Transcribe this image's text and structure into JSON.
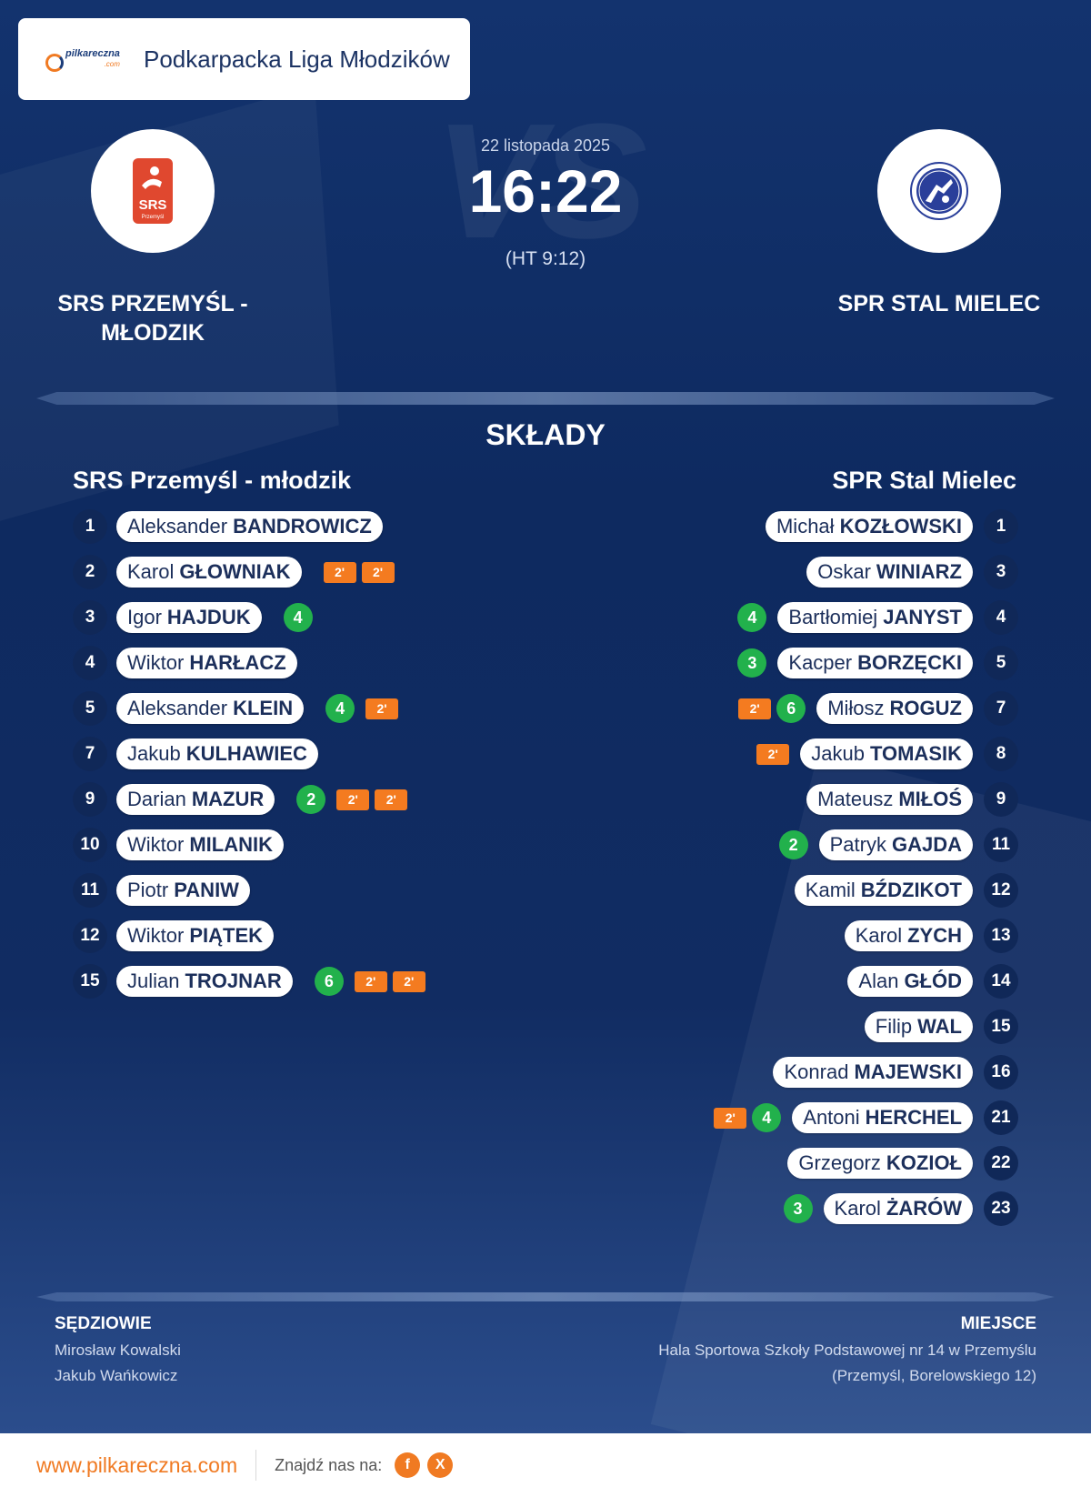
{
  "league": {
    "logo_text": "pilkareczna",
    "logo_sub": ".com",
    "name": "Podkarpacka Liga Młodzików"
  },
  "match": {
    "date": "22 listopada 2025",
    "score": "16:22",
    "half_time": "(HT 9:12)",
    "watermark": "VS"
  },
  "home": {
    "name": "SRS PRZEMYŚL - MŁODZIK",
    "lineup_title": "SRS Przemyśl - młodzik",
    "logo_text": "SRS",
    "logo_sub": "Przemyśl",
    "players": [
      {
        "number": "1",
        "first": "Aleksander",
        "last": "BANDROWICZ",
        "goals": "",
        "penalties": []
      },
      {
        "number": "2",
        "first": "Karol",
        "last": "GŁOWNIAK",
        "goals": "",
        "penalties": [
          "2'",
          "2'"
        ]
      },
      {
        "number": "3",
        "first": "Igor",
        "last": "HAJDUK",
        "goals": "4",
        "penalties": []
      },
      {
        "number": "4",
        "first": "Wiktor",
        "last": "HARŁACZ",
        "goals": "",
        "penalties": []
      },
      {
        "number": "5",
        "first": "Aleksander",
        "last": "KLEIN",
        "goals": "4",
        "penalties": [
          "2'"
        ]
      },
      {
        "number": "7",
        "first": "Jakub",
        "last": "KULHAWIEC",
        "goals": "",
        "penalties": []
      },
      {
        "number": "9",
        "first": "Darian",
        "last": "MAZUR",
        "goals": "2",
        "penalties": [
          "2'",
          "2'"
        ]
      },
      {
        "number": "10",
        "first": "Wiktor",
        "last": "MILANIK",
        "goals": "",
        "penalties": []
      },
      {
        "number": "11",
        "first": "Piotr",
        "last": "PANIW",
        "goals": "",
        "penalties": []
      },
      {
        "number": "12",
        "first": "Wiktor",
        "last": "PIĄTEK",
        "goals": "",
        "penalties": []
      },
      {
        "number": "15",
        "first": "Julian",
        "last": "TROJNAR",
        "goals": "6",
        "penalties": [
          "2'",
          "2'"
        ]
      }
    ]
  },
  "away": {
    "name": "SPR STAL MIELEC",
    "lineup_title": "SPR Stal Mielec",
    "players": [
      {
        "number": "1",
        "first": "Michał",
        "last": "KOZŁOWSKI",
        "goals": "",
        "penalties": []
      },
      {
        "number": "3",
        "first": "Oskar",
        "last": "WINIARZ",
        "goals": "",
        "penalties": []
      },
      {
        "number": "4",
        "first": "Bartłomiej",
        "last": "JANYST",
        "goals": "4",
        "penalties": []
      },
      {
        "number": "5",
        "first": "Kacper",
        "last": "BORZĘCKI",
        "goals": "3",
        "penalties": []
      },
      {
        "number": "7",
        "first": "Miłosz",
        "last": "ROGUZ",
        "goals": "6",
        "penalties": [
          "2'"
        ]
      },
      {
        "number": "8",
        "first": "Jakub",
        "last": "TOMASIK",
        "goals": "",
        "penalties": [
          "2'"
        ]
      },
      {
        "number": "9",
        "first": "Mateusz",
        "last": "MIŁOŚ",
        "goals": "",
        "penalties": []
      },
      {
        "number": "11",
        "first": "Patryk",
        "last": "GAJDA",
        "goals": "2",
        "penalties": []
      },
      {
        "number": "12",
        "first": "Kamil",
        "last": "BŹDZIKOT",
        "goals": "",
        "penalties": []
      },
      {
        "number": "13",
        "first": "Karol",
        "last": "ZYCH",
        "goals": "",
        "penalties": []
      },
      {
        "number": "14",
        "first": "Alan",
        "last": "GŁÓD",
        "goals": "",
        "penalties": []
      },
      {
        "number": "15",
        "first": "Filip",
        "last": "WAL",
        "goals": "",
        "penalties": []
      },
      {
        "number": "16",
        "first": "Konrad",
        "last": "MAJEWSKI",
        "goals": "",
        "penalties": []
      },
      {
        "number": "21",
        "first": "Antoni",
        "last": "HERCHEL",
        "goals": "4",
        "penalties": [
          "2'"
        ]
      },
      {
        "number": "22",
        "first": "Grzegorz",
        "last": "KOZIOŁ",
        "goals": "",
        "penalties": []
      },
      {
        "number": "23",
        "first": "Karol",
        "last": "ŻARÓW",
        "goals": "3",
        "penalties": []
      }
    ]
  },
  "section_title": "SKŁADY",
  "referees": {
    "title": "SĘDZIOWIE",
    "names": [
      "Mirosław Kowalski",
      "Jakub Wańkowicz"
    ]
  },
  "venue": {
    "title": "MIEJSCE",
    "name": "Hala Sportowa Szkoły Podstawowej nr 14 w Przemyślu",
    "address": "(Przemyśl, Borelowskiego 12)"
  },
  "footer": {
    "url": "www.pilkareczna.com",
    "find_us": "Znajdź nas na:",
    "socials": [
      {
        "icon": "facebook-icon",
        "glyph": "f"
      },
      {
        "icon": "x-icon",
        "glyph": "X"
      }
    ]
  },
  "colors": {
    "background": "#13336e",
    "goal_badge": "#22b14c",
    "penalty_badge": "#f47b20",
    "brand_orange": "#f07a22"
  }
}
